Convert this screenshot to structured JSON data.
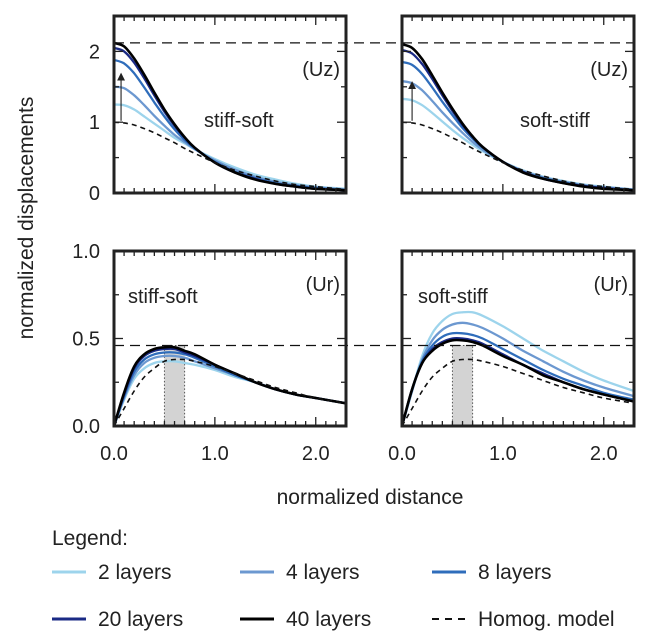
{
  "figure": {
    "ylabel": "normalized displacements",
    "xlabel": "normalized distance",
    "legend_title": "Legend:"
  },
  "colors": {
    "2 layers": "#9dd4ec",
    "4 layers": "#6c98d0",
    "8 layers": "#2f6dbb",
    "20 layers": "#1a2a85",
    "40 layers": "#000000",
    "Homog. model": "#111111",
    "shade": "#d3d3d3",
    "frame": "#222222"
  },
  "legend": [
    {
      "label": "2 layers",
      "style": "solid"
    },
    {
      "label": "4 layers",
      "style": "solid"
    },
    {
      "label": "8 layers",
      "style": "solid"
    },
    {
      "label": "20 layers",
      "style": "solid"
    },
    {
      "label": "40 layers",
      "style": "solid"
    },
    {
      "label": "Homog. model",
      "style": "dashed"
    }
  ],
  "chart_data": [
    {
      "type": "line",
      "panel_label": "(Uz)",
      "annotation": "stiff-soft",
      "xlim": [
        0,
        2.3
      ],
      "ylim": [
        0,
        2.5
      ],
      "yticks": [
        0,
        1,
        2
      ],
      "ytick_labels": [
        "0",
        "1",
        "2"
      ],
      "xticks": [
        0,
        1,
        2
      ],
      "xtick_labels": [],
      "reference_line": 2.12,
      "arrow": {
        "x": 0.07,
        "y_from": 1.02,
        "y_to": 1.7
      },
      "x": [
        0.0,
        0.1,
        0.2,
        0.3,
        0.4,
        0.5,
        0.6,
        0.7,
        0.8,
        1.0,
        1.2,
        1.4,
        1.6,
        1.8,
        2.0,
        2.3
      ],
      "series": [
        {
          "name": "2 layers",
          "values": [
            1.25,
            1.24,
            1.18,
            1.08,
            0.98,
            0.88,
            0.78,
            0.7,
            0.62,
            0.48,
            0.36,
            0.26,
            0.19,
            0.13,
            0.09,
            0.06
          ]
        },
        {
          "name": "4 layers",
          "values": [
            1.5,
            1.48,
            1.38,
            1.24,
            1.09,
            0.95,
            0.82,
            0.72,
            0.62,
            0.46,
            0.33,
            0.23,
            0.16,
            0.11,
            0.08,
            0.05
          ]
        },
        {
          "name": "8 layers",
          "values": [
            1.88,
            1.83,
            1.69,
            1.49,
            1.28,
            1.08,
            0.9,
            0.75,
            0.63,
            0.44,
            0.3,
            0.21,
            0.14,
            0.1,
            0.07,
            0.04
          ]
        },
        {
          "name": "20 layers",
          "values": [
            2.05,
            2.0,
            1.84,
            1.62,
            1.38,
            1.15,
            0.95,
            0.78,
            0.64,
            0.43,
            0.29,
            0.2,
            0.13,
            0.09,
            0.06,
            0.04
          ]
        },
        {
          "name": "40 layers",
          "values": [
            2.12,
            2.07,
            1.9,
            1.67,
            1.42,
            1.18,
            0.97,
            0.79,
            0.64,
            0.43,
            0.29,
            0.19,
            0.13,
            0.09,
            0.06,
            0.04
          ]
        },
        {
          "name": "Homog. model",
          "values": [
            1.0,
            0.99,
            0.96,
            0.91,
            0.85,
            0.78,
            0.71,
            0.63,
            0.56,
            0.43,
            0.32,
            0.24,
            0.17,
            0.12,
            0.09,
            0.05
          ]
        }
      ]
    },
    {
      "type": "line",
      "panel_label": "(Uz)",
      "annotation": "soft-stiff",
      "xlim": [
        0,
        2.3
      ],
      "ylim": [
        0,
        2.5
      ],
      "yticks": [
        0,
        1,
        2
      ],
      "ytick_labels": [],
      "xticks": [
        0,
        1,
        2
      ],
      "xtick_labels": [],
      "reference_line": 2.12,
      "arrow": {
        "x": 0.1,
        "y_from": 1.02,
        "y_to": 1.58
      },
      "x": [
        0.0,
        0.1,
        0.2,
        0.3,
        0.4,
        0.5,
        0.6,
        0.7,
        0.8,
        1.0,
        1.2,
        1.4,
        1.6,
        1.8,
        2.0,
        2.3
      ],
      "series": [
        {
          "name": "2 layers",
          "values": [
            1.33,
            1.31,
            1.24,
            1.13,
            1.01,
            0.89,
            0.78,
            0.68,
            0.59,
            0.44,
            0.32,
            0.23,
            0.17,
            0.12,
            0.09,
            0.05
          ]
        },
        {
          "name": "4 layers",
          "values": [
            1.58,
            1.55,
            1.45,
            1.3,
            1.14,
            0.99,
            0.85,
            0.72,
            0.61,
            0.44,
            0.31,
            0.22,
            0.16,
            0.11,
            0.08,
            0.05
          ]
        },
        {
          "name": "8 layers",
          "values": [
            1.85,
            1.81,
            1.68,
            1.49,
            1.29,
            1.1,
            0.92,
            0.77,
            0.64,
            0.44,
            0.3,
            0.21,
            0.15,
            0.1,
            0.07,
            0.04
          ]
        },
        {
          "name": "20 layers",
          "values": [
            2.02,
            1.97,
            1.82,
            1.61,
            1.38,
            1.16,
            0.96,
            0.79,
            0.65,
            0.44,
            0.3,
            0.2,
            0.14,
            0.1,
            0.07,
            0.04
          ]
        },
        {
          "name": "40 layers",
          "values": [
            2.1,
            2.05,
            1.89,
            1.66,
            1.42,
            1.19,
            0.98,
            0.8,
            0.65,
            0.44,
            0.29,
            0.2,
            0.14,
            0.09,
            0.06,
            0.04
          ]
        },
        {
          "name": "Homog. model",
          "values": [
            1.0,
            0.99,
            0.96,
            0.91,
            0.85,
            0.78,
            0.71,
            0.63,
            0.56,
            0.43,
            0.32,
            0.24,
            0.17,
            0.12,
            0.09,
            0.05
          ]
        }
      ]
    },
    {
      "type": "line",
      "panel_label": "(Ur)",
      "annotation": "stiff-soft",
      "xlim": [
        0,
        2.3
      ],
      "ylim": [
        0,
        1.0
      ],
      "yticks": [
        0,
        0.5,
        1.0
      ],
      "ytick_labels": [
        "0.0",
        "0.5",
        "1.0"
      ],
      "xticks": [
        0,
        1,
        2
      ],
      "xtick_labels": [
        "0.0",
        "1.0",
        "2.0"
      ],
      "reference_line": 0.46,
      "shaded_band": [
        0.5,
        0.7
      ],
      "x": [
        0.0,
        0.1,
        0.2,
        0.3,
        0.4,
        0.5,
        0.6,
        0.7,
        0.8,
        1.0,
        1.2,
        1.4,
        1.6,
        1.8,
        2.0,
        2.3
      ],
      "series": [
        {
          "name": "2 layers",
          "values": [
            0.0,
            0.15,
            0.27,
            0.33,
            0.36,
            0.37,
            0.37,
            0.36,
            0.35,
            0.32,
            0.28,
            0.25,
            0.21,
            0.18,
            0.16,
            0.13
          ]
        },
        {
          "name": "4 layers",
          "values": [
            0.0,
            0.16,
            0.29,
            0.36,
            0.39,
            0.4,
            0.4,
            0.39,
            0.37,
            0.33,
            0.29,
            0.25,
            0.21,
            0.18,
            0.16,
            0.13
          ]
        },
        {
          "name": "8 layers",
          "values": [
            0.0,
            0.17,
            0.31,
            0.38,
            0.41,
            0.42,
            0.42,
            0.41,
            0.39,
            0.34,
            0.29,
            0.25,
            0.21,
            0.18,
            0.16,
            0.13
          ]
        },
        {
          "name": "20 layers",
          "values": [
            0.0,
            0.18,
            0.33,
            0.4,
            0.43,
            0.44,
            0.44,
            0.42,
            0.4,
            0.35,
            0.3,
            0.25,
            0.21,
            0.18,
            0.16,
            0.13
          ]
        },
        {
          "name": "40 layers",
          "values": [
            0.0,
            0.19,
            0.34,
            0.41,
            0.44,
            0.45,
            0.45,
            0.43,
            0.41,
            0.35,
            0.3,
            0.25,
            0.21,
            0.18,
            0.16,
            0.13
          ]
        },
        {
          "name": "Homog. model",
          "values": [
            0.0,
            0.1,
            0.2,
            0.28,
            0.33,
            0.37,
            0.38,
            0.38,
            0.37,
            0.34,
            0.3,
            0.26,
            0.22,
            0.19,
            0.16,
            0.13
          ]
        }
      ]
    },
    {
      "type": "line",
      "panel_label": "(Ur)",
      "annotation": "soft-stiff",
      "xlim": [
        0,
        2.3
      ],
      "ylim": [
        0,
        1.0
      ],
      "yticks": [
        0,
        0.5,
        1.0
      ],
      "ytick_labels": [],
      "xticks": [
        0,
        1,
        2
      ],
      "xtick_labels": [
        "0.0",
        "1.0",
        "2.0"
      ],
      "reference_line": 0.46,
      "shaded_band": [
        0.5,
        0.7
      ],
      "x": [
        0.0,
        0.1,
        0.2,
        0.3,
        0.4,
        0.5,
        0.6,
        0.7,
        0.8,
        1.0,
        1.2,
        1.4,
        1.6,
        1.8,
        2.0,
        2.3
      ],
      "series": [
        {
          "name": "2 layers",
          "values": [
            0.0,
            0.2,
            0.4,
            0.53,
            0.6,
            0.64,
            0.65,
            0.65,
            0.63,
            0.57,
            0.5,
            0.43,
            0.37,
            0.31,
            0.26,
            0.2
          ]
        },
        {
          "name": "4 layers",
          "values": [
            0.0,
            0.2,
            0.38,
            0.49,
            0.55,
            0.58,
            0.59,
            0.58,
            0.56,
            0.5,
            0.43,
            0.37,
            0.31,
            0.26,
            0.22,
            0.17
          ]
        },
        {
          "name": "8 layers",
          "values": [
            0.0,
            0.21,
            0.37,
            0.46,
            0.51,
            0.53,
            0.53,
            0.52,
            0.5,
            0.44,
            0.38,
            0.32,
            0.27,
            0.23,
            0.19,
            0.15
          ]
        },
        {
          "name": "20 layers",
          "values": [
            0.0,
            0.21,
            0.36,
            0.44,
            0.48,
            0.5,
            0.5,
            0.49,
            0.47,
            0.41,
            0.35,
            0.3,
            0.25,
            0.21,
            0.18,
            0.14
          ]
        },
        {
          "name": "40 layers",
          "values": [
            0.0,
            0.21,
            0.36,
            0.43,
            0.47,
            0.49,
            0.49,
            0.48,
            0.46,
            0.4,
            0.35,
            0.29,
            0.25,
            0.21,
            0.18,
            0.14
          ]
        },
        {
          "name": "Homog. model",
          "values": [
            0.0,
            0.1,
            0.2,
            0.28,
            0.33,
            0.37,
            0.38,
            0.38,
            0.37,
            0.34,
            0.3,
            0.26,
            0.22,
            0.19,
            0.16,
            0.13
          ]
        }
      ]
    }
  ]
}
